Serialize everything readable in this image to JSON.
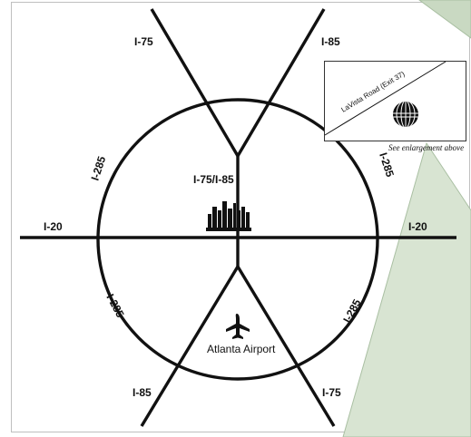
{
  "labels": {
    "i75_north": "I-75",
    "i85_north": "I-85",
    "i285_nw": "I-285",
    "i285_ne": "I-285",
    "i75_i85": "I-75/I-85",
    "i20_west": "I-20",
    "i20_east": "I-20",
    "i285_sw": "I-285",
    "i285_se": "I-285",
    "airport": "Atlanta Airport",
    "i85_south": "I-85",
    "i75_south": "I-75",
    "lavista": "LaVista Road (Exit 37)",
    "enlargement": "See enlargement above"
  },
  "icons": {
    "airport": "airplane-icon",
    "downtown": "city-skyline-icon",
    "destination": "globe-logo-icon"
  },
  "colors": {
    "road": "#111111",
    "callout_fill": "#d8e4d2",
    "callout_edge": "#a9bfa2",
    "frame": "#bfbfbf",
    "background": "#ffffff"
  }
}
